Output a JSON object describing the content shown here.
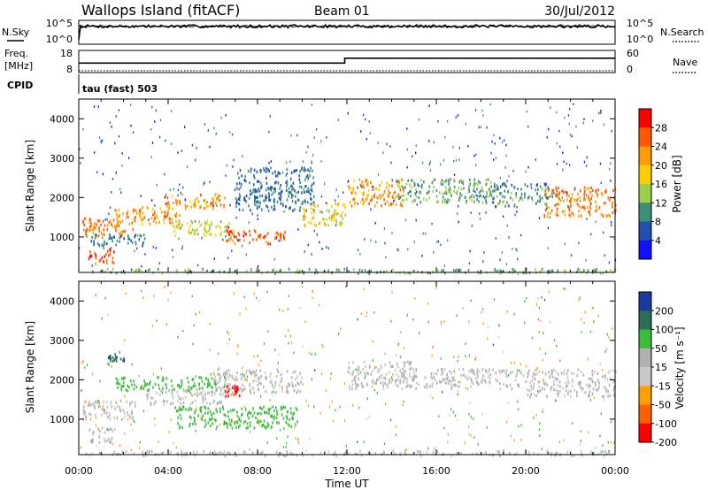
{
  "header": {
    "site": "Wallops Island (fitACF)",
    "beam": "Beam 01",
    "date": "30/Jul/2012"
  },
  "noise_panel": {
    "left_label": "N.Sky",
    "left_ticks": [
      "10^5",
      "10^0"
    ],
    "right_label": "N.Search",
    "right_ticks": [
      "10^5",
      "10^0"
    ]
  },
  "freq_panel": {
    "left_label_1": "Freq.",
    "left_label_2": "[MHz]",
    "left_ticks": [
      "18",
      "8"
    ],
    "right_label": "Nave",
    "right_ticks": [
      "60",
      "0"
    ],
    "cpid_label": "CPID",
    "cpid_text": "tau (fast) 503"
  },
  "power_panel": {
    "ylabel": "Slant Range [km]",
    "yticks": [
      "4000",
      "3000",
      "2000",
      "1000"
    ],
    "colorbar_label": "Power [dB]",
    "colorbar_ticks": [
      "28",
      "24",
      "20",
      "16",
      "12",
      "8",
      "4"
    ],
    "colorbar_colors": [
      "#ff0000",
      "#ff5a00",
      "#ff9d00",
      "#ffd000",
      "#9bcf4c",
      "#3c8f78",
      "#2050b0",
      "#1010ff"
    ]
  },
  "velocity_panel": {
    "ylabel": "Slant Range [km]",
    "yticks": [
      "4000",
      "3000",
      "2000",
      "1000"
    ],
    "colorbar_label": "Velocity [m s⁻¹]",
    "colorbar_ticks": [
      "200",
      "100",
      "50",
      "15",
      "-15",
      "-50",
      "-100",
      "-200"
    ],
    "colorbar_colors": [
      "#1b3aa0",
      "#2c6f58",
      "#3dbb3d",
      "#b0b0b0",
      "#c8c8c8",
      "#ffa000",
      "#ff6000",
      "#ff0000"
    ]
  },
  "xaxis": {
    "label": "Time UT",
    "ticks": [
      "00:00",
      "04:00",
      "08:00",
      "12:00",
      "16:00",
      "20:00",
      "00:00"
    ]
  },
  "chart_data": {
    "type": "heatmap",
    "title": "Wallops Island (fitACF)",
    "x_unit": "hours UT",
    "xlim": [
      0,
      24
    ],
    "ylim": [
      100,
      4500
    ],
    "noise": {
      "sky_level": 0.75,
      "search_level": 0.75
    },
    "frequency": {
      "segments": [
        {
          "start": 0.0,
          "end": 11.9,
          "value": 12.3
        },
        {
          "start": 11.9,
          "end": 24.0,
          "value": 14.5
        }
      ],
      "ylim": [
        8,
        18
      ]
    },
    "nave": {
      "value": 5,
      "ylim": [
        0,
        60
      ]
    },
    "power_regions": [
      {
        "t0": 0.1,
        "t1": 2.5,
        "r0": 1050,
        "r1": 1500,
        "power": 24
      },
      {
        "t0": 0.4,
        "t1": 1.6,
        "r0": 350,
        "r1": 750,
        "power": 26
      },
      {
        "t0": 1.6,
        "t1": 4.5,
        "r0": 1350,
        "r1": 1800,
        "power": 22
      },
      {
        "t0": 3.8,
        "t1": 6.5,
        "r0": 1750,
        "r1": 2150,
        "power": 22
      },
      {
        "t0": 4.2,
        "t1": 7.0,
        "r0": 1050,
        "r1": 1450,
        "power": 16
      },
      {
        "t0": 6.5,
        "t1": 9.2,
        "r0": 850,
        "r1": 1200,
        "power": 27
      },
      {
        "t0": 7.0,
        "t1": 10.5,
        "r0": 1700,
        "r1": 2800,
        "power": 8
      },
      {
        "t0": 10.0,
        "t1": 11.9,
        "r0": 1300,
        "r1": 1900,
        "power": 18
      },
      {
        "t0": 12.0,
        "t1": 14.5,
        "r0": 1800,
        "r1": 2500,
        "power": 22
      },
      {
        "t0": 14.0,
        "t1": 18.5,
        "r0": 1900,
        "r1": 2500,
        "power": 12
      },
      {
        "t0": 18.5,
        "t1": 21.0,
        "r0": 1800,
        "r1": 2400,
        "power": 10
      },
      {
        "t0": 20.8,
        "t1": 24.0,
        "r0": 1550,
        "r1": 2300,
        "power": 24
      },
      {
        "t0": 0.5,
        "t1": 3.0,
        "r0": 800,
        "r1": 1100,
        "power": 8
      },
      {
        "t0": 0.0,
        "t1": 24.0,
        "r0": 100,
        "r1": 220,
        "power": 12
      }
    ],
    "velocity_regions": [
      {
        "t0": 0.1,
        "t1": 2.5,
        "r0": 1000,
        "r1": 1500,
        "velocity": 0
      },
      {
        "t0": 0.4,
        "t1": 1.6,
        "r0": 400,
        "r1": 800,
        "velocity": 0
      },
      {
        "t0": 1.6,
        "t1": 6.5,
        "r0": 1750,
        "r1": 2100,
        "velocity": 40
      },
      {
        "t0": 3.0,
        "t1": 6.5,
        "r0": 1400,
        "r1": 1800,
        "velocity": 0
      },
      {
        "t0": 4.2,
        "t1": 9.8,
        "r0": 800,
        "r1": 1350,
        "velocity": 45
      },
      {
        "t0": 6.0,
        "t1": 10.0,
        "r0": 1700,
        "r1": 2300,
        "velocity": 0
      },
      {
        "t0": 6.5,
        "t1": 7.2,
        "r0": 1600,
        "r1": 1900,
        "velocity": -200
      },
      {
        "t0": 1.3,
        "t1": 2.0,
        "r0": 2500,
        "r1": 2700,
        "velocity": 150
      },
      {
        "t0": 12.0,
        "t1": 15.0,
        "r0": 1800,
        "r1": 2500,
        "velocity": 0
      },
      {
        "t0": 14.5,
        "t1": 20.0,
        "r0": 1800,
        "r1": 2300,
        "velocity": 0
      },
      {
        "t0": 20.0,
        "t1": 24.0,
        "r0": 1600,
        "r1": 2300,
        "velocity": 0
      },
      {
        "t0": 0.0,
        "t1": 24.0,
        "r0": 100,
        "r1": 220,
        "velocity": 0
      }
    ]
  }
}
